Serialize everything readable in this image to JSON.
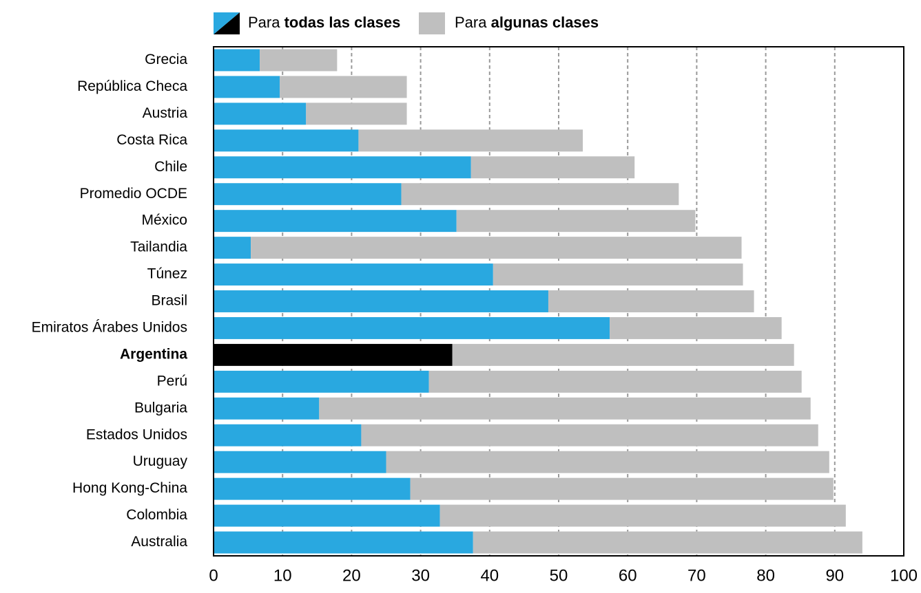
{
  "chart_data": {
    "type": "stacked_barh",
    "categories": [
      "Grecia",
      "República Checa",
      "Austria",
      "Costa Rica",
      "Chile",
      "Promedio OCDE",
      "México",
      "Tailandia",
      "Túnez",
      "Brasil",
      "Emiratos Árabes Unidos",
      "Argentina",
      "Perú",
      "Bulgaria",
      "Estados Unidos",
      "Uruguay",
      "Hong Kong-China",
      "Colombia",
      "Australia"
    ],
    "series": [
      {
        "name": "Para todas las clases",
        "color": "#29a8e0",
        "values": [
          6.7,
          9.6,
          13.4,
          21.0,
          37.3,
          27.2,
          35.2,
          5.4,
          40.5,
          48.5,
          57.4,
          34.6,
          31.2,
          15.3,
          21.4,
          25.0,
          28.5,
          32.8,
          37.6
        ]
      },
      {
        "name": "Para algunas clases",
        "color": "#bfbfbf",
        "values": [
          11.2,
          18.4,
          14.6,
          32.5,
          23.7,
          40.2,
          34.6,
          71.1,
          36.2,
          29.8,
          24.9,
          49.5,
          54.0,
          71.2,
          66.2,
          64.2,
          61.3,
          58.8,
          56.4
        ]
      }
    ],
    "highlight_index": 11,
    "highlight_color": "#000000",
    "xlim": [
      0,
      100
    ],
    "xticks": [
      0,
      10,
      20,
      30,
      40,
      50,
      60,
      70,
      80,
      90,
      100
    ],
    "grid": true
  }
}
